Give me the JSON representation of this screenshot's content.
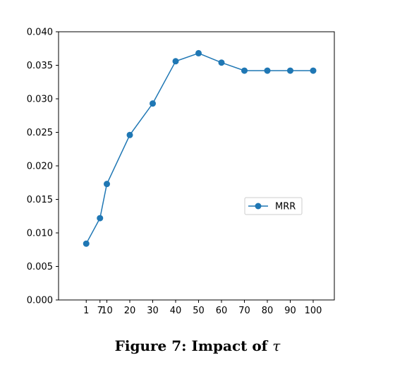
{
  "chart_data": {
    "type": "line",
    "x_ticks": [
      1,
      7,
      10,
      20,
      30,
      40,
      50,
      60,
      70,
      80,
      90,
      100
    ],
    "y_ticks": [
      "0.000",
      "0.005",
      "0.010",
      "0.015",
      "0.020",
      "0.025",
      "0.030",
      "0.035",
      "0.040"
    ],
    "ylim": [
      0,
      0.04
    ],
    "series": [
      {
        "name": "MRR",
        "color": "#1f77b4",
        "x": [
          1,
          7,
          10,
          20,
          30,
          40,
          50,
          60,
          70,
          80,
          90,
          100
        ],
        "y": [
          0.0084,
          0.0122,
          0.0173,
          0.0246,
          0.0293,
          0.0356,
          0.0368,
          0.0354,
          0.0342,
          0.0342,
          0.0342,
          0.0342
        ]
      }
    ],
    "legend_position": "center-right",
    "grid": false
  },
  "caption": {
    "prefix": "Figure 7: Impact of ",
    "symbol": "τ"
  }
}
